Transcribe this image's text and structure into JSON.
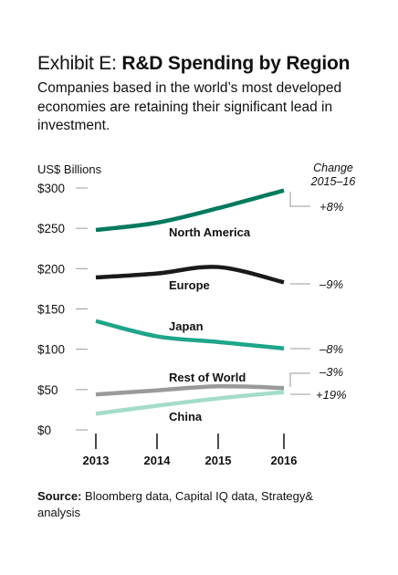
{
  "header": {
    "exhibit_label": "Exhibit E:",
    "title": "R&D Spending by Region",
    "subtitle": "Companies based in the world’s most developed economies are retaining their significant lead in investment."
  },
  "chart_data": {
    "type": "line",
    "ylabel": "US$ Billions",
    "change_header_line1": "Change",
    "change_header_line2": "2015–16",
    "x": [
      "2013",
      "2014",
      "2015",
      "2016"
    ],
    "y_ticks": [
      "$0",
      "$50",
      "$100",
      "$150",
      "$200",
      "$250",
      "$300"
    ],
    "ylim": [
      0,
      300
    ],
    "series": [
      {
        "name": "North America",
        "values": [
          248,
          257,
          275,
          297
        ],
        "change": "+8%",
        "color": "#007a5e"
      },
      {
        "name": "Europe",
        "values": [
          189,
          194,
          202,
          183
        ],
        "change": "–9%",
        "color": "#1a1a1a"
      },
      {
        "name": "Japan",
        "values": [
          135,
          116,
          109,
          101
        ],
        "change": "–8%",
        "color": "#1ea58a"
      },
      {
        "name": "Rest of World",
        "values": [
          44,
          49,
          54,
          52
        ],
        "change": "–3%",
        "color": "#9a9a9a"
      },
      {
        "name": "China",
        "values": [
          20,
          30,
          39,
          47
        ],
        "change": "+19%",
        "color": "#a3dccb"
      }
    ]
  },
  "source": {
    "label": "Source:",
    "text": "Bloomberg data, Capital IQ data, Strategy& analysis"
  }
}
